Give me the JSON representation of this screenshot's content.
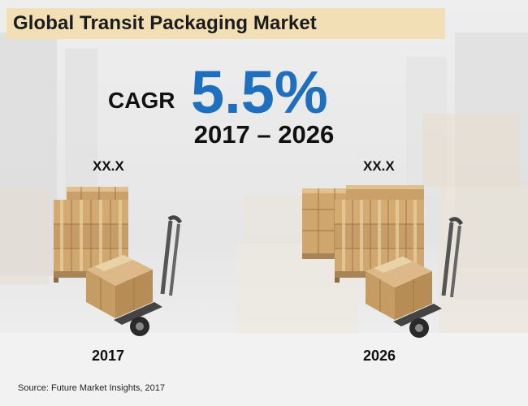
{
  "header": {
    "title": "Global Transit Packaging Market"
  },
  "cagr": {
    "label": "CAGR",
    "value": "5.5%",
    "period": "2017 – 2026"
  },
  "chart_data": {
    "type": "bar",
    "categories": [
      "2017",
      "2026"
    ],
    "value_labels": [
      "XX.X",
      "XX.X"
    ]
  },
  "source": "Source: Future Market Insights, 2017",
  "colors": {
    "title_band": "#f2dfb6",
    "cagr_value": "#1f6fc0"
  }
}
